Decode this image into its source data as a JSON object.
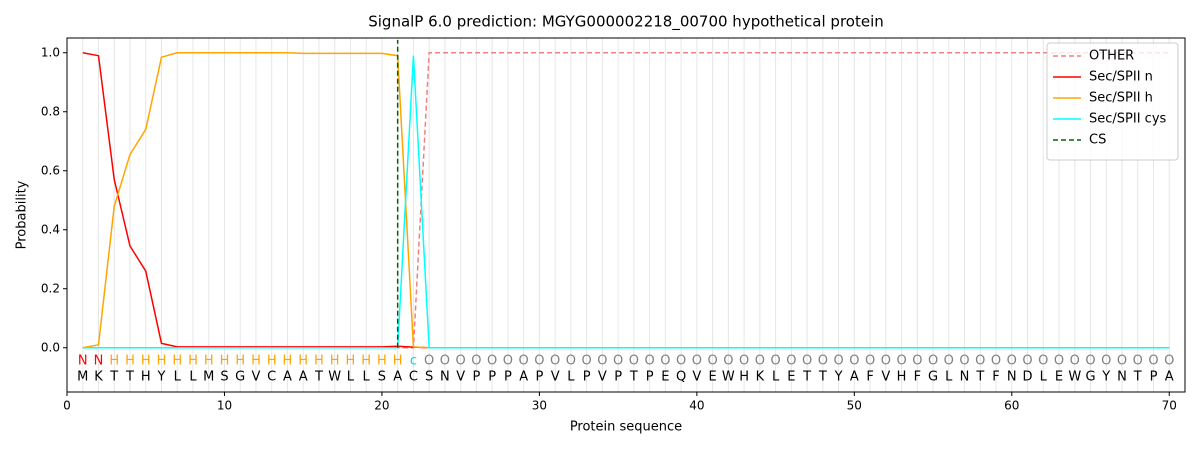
{
  "chart_data": {
    "type": "line",
    "title": "SignalP 6.0 prediction: MGYG000002218_00700 hypothetical protein",
    "xlabel": "Protein sequence",
    "ylabel": "Probability",
    "x": [
      1,
      2,
      3,
      4,
      5,
      6,
      7,
      8,
      9,
      10,
      11,
      12,
      13,
      14,
      15,
      16,
      17,
      18,
      19,
      20,
      21,
      22,
      23,
      24,
      25,
      26,
      27,
      28,
      29,
      30,
      31,
      32,
      33,
      34,
      35,
      36,
      37,
      38,
      39,
      40,
      41,
      42,
      43,
      44,
      45,
      46,
      47,
      48,
      49,
      50,
      51,
      52,
      53,
      54,
      55,
      56,
      57,
      58,
      59,
      60,
      61,
      62,
      63,
      64,
      65,
      66,
      67,
      68,
      69,
      70
    ],
    "series": [
      {
        "name": "OTHER",
        "color": "#f08080",
        "dash": true,
        "values": [
          0,
          0,
          0,
          0,
          0,
          0,
          0,
          0,
          0,
          0,
          0,
          0,
          0,
          0,
          0,
          0,
          0,
          0,
          0,
          0,
          0,
          0,
          1,
          1,
          1,
          1,
          1,
          1,
          1,
          1,
          1,
          1,
          1,
          1,
          1,
          1,
          1,
          1,
          1,
          1,
          1,
          1,
          1,
          1,
          1,
          1,
          1,
          1,
          1,
          1,
          1,
          1,
          1,
          1,
          1,
          1,
          1,
          1,
          1,
          1,
          1,
          1,
          1,
          1,
          1,
          1,
          1,
          1,
          1,
          1
        ]
      },
      {
        "name": "Sec/SPII n",
        "color": "#ff0000",
        "values": [
          1.0,
          0.99,
          0.57,
          0.345,
          0.26,
          0.015,
          0.003,
          0.003,
          0.003,
          0.003,
          0.003,
          0.003,
          0.003,
          0.003,
          0.003,
          0.003,
          0.003,
          0.003,
          0.003,
          0.003,
          0.005,
          0.002,
          0,
          0,
          0,
          0,
          0,
          0,
          0,
          0,
          0,
          0,
          0,
          0,
          0,
          0,
          0,
          0,
          0,
          0,
          0,
          0,
          0,
          0,
          0,
          0,
          0,
          0,
          0,
          0,
          0,
          0,
          0,
          0,
          0,
          0,
          0,
          0,
          0,
          0,
          0,
          0,
          0,
          0,
          0,
          0,
          0,
          0,
          0,
          0
        ]
      },
      {
        "name": "Sec/SPII h",
        "color": "#ffa500",
        "values": [
          0,
          0.01,
          0.48,
          0.655,
          0.74,
          0.985,
          1.0,
          1.0,
          1.0,
          1.0,
          1.0,
          1.0,
          1.0,
          1.0,
          0.998,
          0.998,
          0.998,
          0.998,
          0.998,
          0.998,
          0.99,
          0.003,
          0,
          0,
          0,
          0,
          0,
          0,
          0,
          0,
          0,
          0,
          0,
          0,
          0,
          0,
          0,
          0,
          0,
          0,
          0,
          0,
          0,
          0,
          0,
          0,
          0,
          0,
          0,
          0,
          0,
          0,
          0,
          0,
          0,
          0,
          0,
          0,
          0,
          0,
          0,
          0,
          0,
          0,
          0,
          0,
          0,
          0,
          0,
          0
        ]
      },
      {
        "name": "Sec/SPII cys",
        "color": "#00ffff",
        "values": [
          0,
          0,
          0,
          0,
          0,
          0,
          0,
          0,
          0,
          0,
          0,
          0,
          0,
          0,
          0,
          0,
          0,
          0,
          0,
          0,
          0,
          0.99,
          0,
          0,
          0,
          0,
          0,
          0,
          0,
          0,
          0,
          0,
          0,
          0,
          0,
          0,
          0,
          0,
          0,
          0,
          0,
          0,
          0,
          0,
          0,
          0,
          0,
          0,
          0,
          0,
          0,
          0,
          0,
          0,
          0,
          0,
          0,
          0,
          0,
          0,
          0,
          0,
          0,
          0,
          0,
          0,
          0,
          0,
          0,
          0
        ]
      }
    ],
    "cs": {
      "name": "CS",
      "color": "#006400",
      "x": 21
    },
    "residues": [
      "M",
      "K",
      "T",
      "T",
      "H",
      "Y",
      "L",
      "L",
      "M",
      "S",
      "G",
      "V",
      "C",
      "A",
      "A",
      "T",
      "W",
      "L",
      "L",
      "S",
      "A",
      "C",
      "S",
      "N",
      "V",
      "P",
      "P",
      "P",
      "A",
      "P",
      "V",
      "L",
      "P",
      "V",
      "P",
      "T",
      "P",
      "E",
      "Q",
      "V",
      "E",
      "W",
      "H",
      "K",
      "L",
      "E",
      "T",
      "T",
      "Y",
      "A",
      "F",
      "V",
      "H",
      "F",
      "G",
      "L",
      "N",
      "T",
      "F",
      "N",
      "D",
      "L",
      "E",
      "W",
      "G",
      "Y",
      "N",
      "T",
      "P",
      "A"
    ],
    "labels": [
      "N",
      "N",
      "H",
      "H",
      "H",
      "H",
      "H",
      "H",
      "H",
      "H",
      "H",
      "H",
      "H",
      "H",
      "H",
      "H",
      "H",
      "H",
      "H",
      "H",
      "H",
      "c",
      "O",
      "O",
      "O",
      "O",
      "O",
      "O",
      "O",
      "O",
      "O",
      "O",
      "O",
      "O",
      "O",
      "O",
      "O",
      "O",
      "O",
      "O",
      "O",
      "O",
      "O",
      "O",
      "O",
      "O",
      "O",
      "O",
      "O",
      "O",
      "O",
      "O",
      "O",
      "O",
      "O",
      "O",
      "O",
      "O",
      "O",
      "O",
      "O",
      "O",
      "O",
      "O",
      "O",
      "O",
      "O",
      "O",
      "O",
      "O"
    ],
    "label_colors": {
      "N": "#ff0000",
      "H": "#ffa500",
      "c": "#00d8d8",
      "O": "#808080"
    },
    "xlim": [
      0,
      71
    ],
    "ylim": [
      -0.15,
      1.05
    ],
    "xticks": [
      0,
      10,
      20,
      30,
      40,
      50,
      60,
      70
    ],
    "yticks": [
      {
        "value": 0,
        "label": "0.0"
      },
      {
        "value": 0.2,
        "label": "0.2"
      },
      {
        "value": 0.4,
        "label": "0.4"
      },
      {
        "value": 0.6,
        "label": "0.6"
      },
      {
        "value": 0.8,
        "label": "0.8"
      },
      {
        "value": 1.0,
        "label": "1.0"
      }
    ],
    "legend": "upper right"
  }
}
